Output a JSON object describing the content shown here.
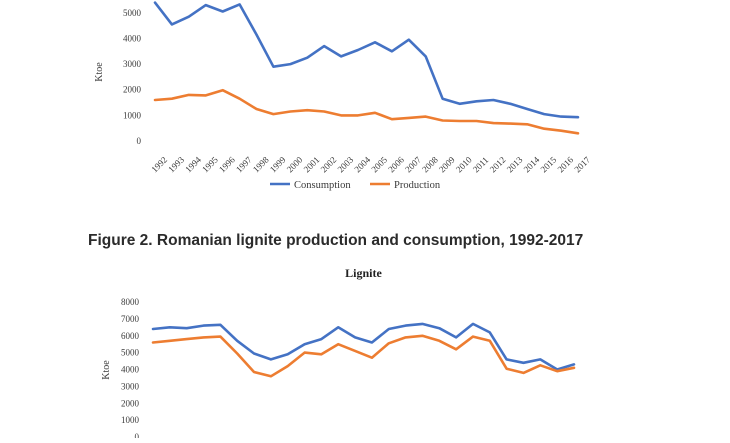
{
  "caption": "Figure 2. Romanian lignite production and consumption, 1992-2017",
  "colors": {
    "consumption": "#4472c4",
    "production": "#ed7d31",
    "text": "#3a3a3a"
  },
  "chart_data": [
    {
      "type": "line",
      "title": "",
      "xlabel": "",
      "ylabel": "Ktoe",
      "ylim": [
        0,
        5500
      ],
      "yticks": [
        "0",
        "1000",
        "2000",
        "3000",
        "4000",
        "5000"
      ],
      "ytick_values": [
        0,
        1000,
        2000,
        3000,
        4000,
        5000
      ],
      "x": [
        "1992",
        "1993",
        "1994",
        "1995",
        "1996",
        "1997",
        "1998",
        "1999",
        "2000",
        "2001",
        "2002",
        "2003",
        "2004",
        "2005",
        "2006",
        "2007",
        "2008",
        "2009",
        "2010",
        "2011",
        "2012",
        "2013",
        "2014",
        "2015",
        "2016",
        "2017"
      ],
      "legend": [
        "Consumption",
        "Production"
      ],
      "legend_position": "bottom",
      "series": [
        {
          "name": "Consumption",
          "values": [
            5400,
            4550,
            4850,
            5300,
            5050,
            5330,
            4150,
            2900,
            3000,
            3250,
            3700,
            3300,
            3550,
            3850,
            3500,
            3950,
            3300,
            1650,
            1450,
            1550,
            1600,
            1450,
            1250,
            1050,
            950,
            930
          ]
        },
        {
          "name": "Production",
          "values": [
            1600,
            1650,
            1800,
            1780,
            1980,
            1650,
            1250,
            1050,
            1150,
            1200,
            1150,
            1000,
            1000,
            1100,
            850,
            900,
            950,
            800,
            780,
            780,
            700,
            680,
            650,
            480,
            400,
            300
          ]
        }
      ]
    },
    {
      "type": "line",
      "title": "Lignite",
      "xlabel": "",
      "ylabel": "Ktoe",
      "ylim": [
        0,
        8000
      ],
      "yticks": [
        "0",
        "1000",
        "2000",
        "3000",
        "4000",
        "5000",
        "6000",
        "7000",
        "8000"
      ],
      "ytick_values": [
        0,
        1000,
        2000,
        3000,
        4000,
        5000,
        6000,
        7000,
        8000
      ],
      "series": [
        {
          "name": "Consumption",
          "values": [
            6400,
            6500,
            6450,
            6600,
            6650,
            5700,
            4950,
            4600,
            4900,
            5500,
            5800,
            6500,
            5900,
            5600,
            6400,
            6600,
            6700,
            6450,
            5900,
            6700,
            6200,
            4600,
            4400,
            4600,
            4000,
            4300
          ]
        },
        {
          "name": "Production",
          "values": [
            5600,
            5700,
            5800,
            5900,
            5950,
            4950,
            3850,
            3600,
            4200,
            5000,
            4900,
            5500,
            5100,
            4700,
            5550,
            5900,
            6000,
            5700,
            5200,
            5950,
            5700,
            4050,
            3800,
            4250,
            3900,
            4100
          ]
        }
      ]
    }
  ]
}
